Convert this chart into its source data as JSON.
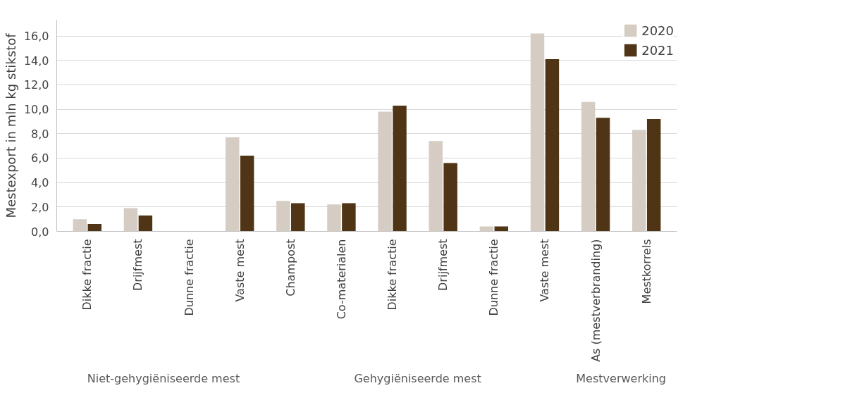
{
  "chart_data": {
    "type": "bar",
    "ylabel": "Mestexport in mln kg stikstof",
    "categories": [
      "Dikke fractie",
      "Drijfmest",
      "Dunne fractie",
      "Vaste mest",
      "Champost",
      "Co-materialen",
      "Dikke fractie",
      "Drijfmest",
      "Dunne fractie",
      "Vaste mest",
      "As (mestverbranding)",
      "Mestkorrels"
    ],
    "series": [
      {
        "name": "2020",
        "color": "#d5cdc3",
        "values": [
          1.0,
          1.9,
          0.0,
          7.7,
          2.5,
          2.2,
          9.8,
          7.4,
          0.4,
          16.2,
          10.6,
          8.3
        ]
      },
      {
        "name": "2021",
        "color": "#4f3516",
        "values": [
          0.6,
          1.3,
          0.0,
          6.2,
          2.3,
          2.3,
          10.3,
          5.6,
          0.4,
          14.1,
          9.3,
          9.2
        ]
      }
    ],
    "annotations": [
      "Niet-gehygiëniseerde mest",
      "Gehygiëniseerde mest",
      "Mestverwerking"
    ],
    "ylim": [
      0,
      17.3
    ],
    "yticks": [
      {
        "value": 0,
        "label": "0,0"
      },
      {
        "value": 2,
        "label": "2,0"
      },
      {
        "value": 4,
        "label": "4,0"
      },
      {
        "value": 6,
        "label": "6,0"
      },
      {
        "value": 8,
        "label": "8,0"
      },
      {
        "value": 10,
        "label": "10,0"
      },
      {
        "value": 12,
        "label": "12,0"
      },
      {
        "value": 14,
        "label": "14,0"
      },
      {
        "value": 16,
        "label": "16,0"
      }
    ],
    "grid": "y",
    "legend": "right"
  }
}
